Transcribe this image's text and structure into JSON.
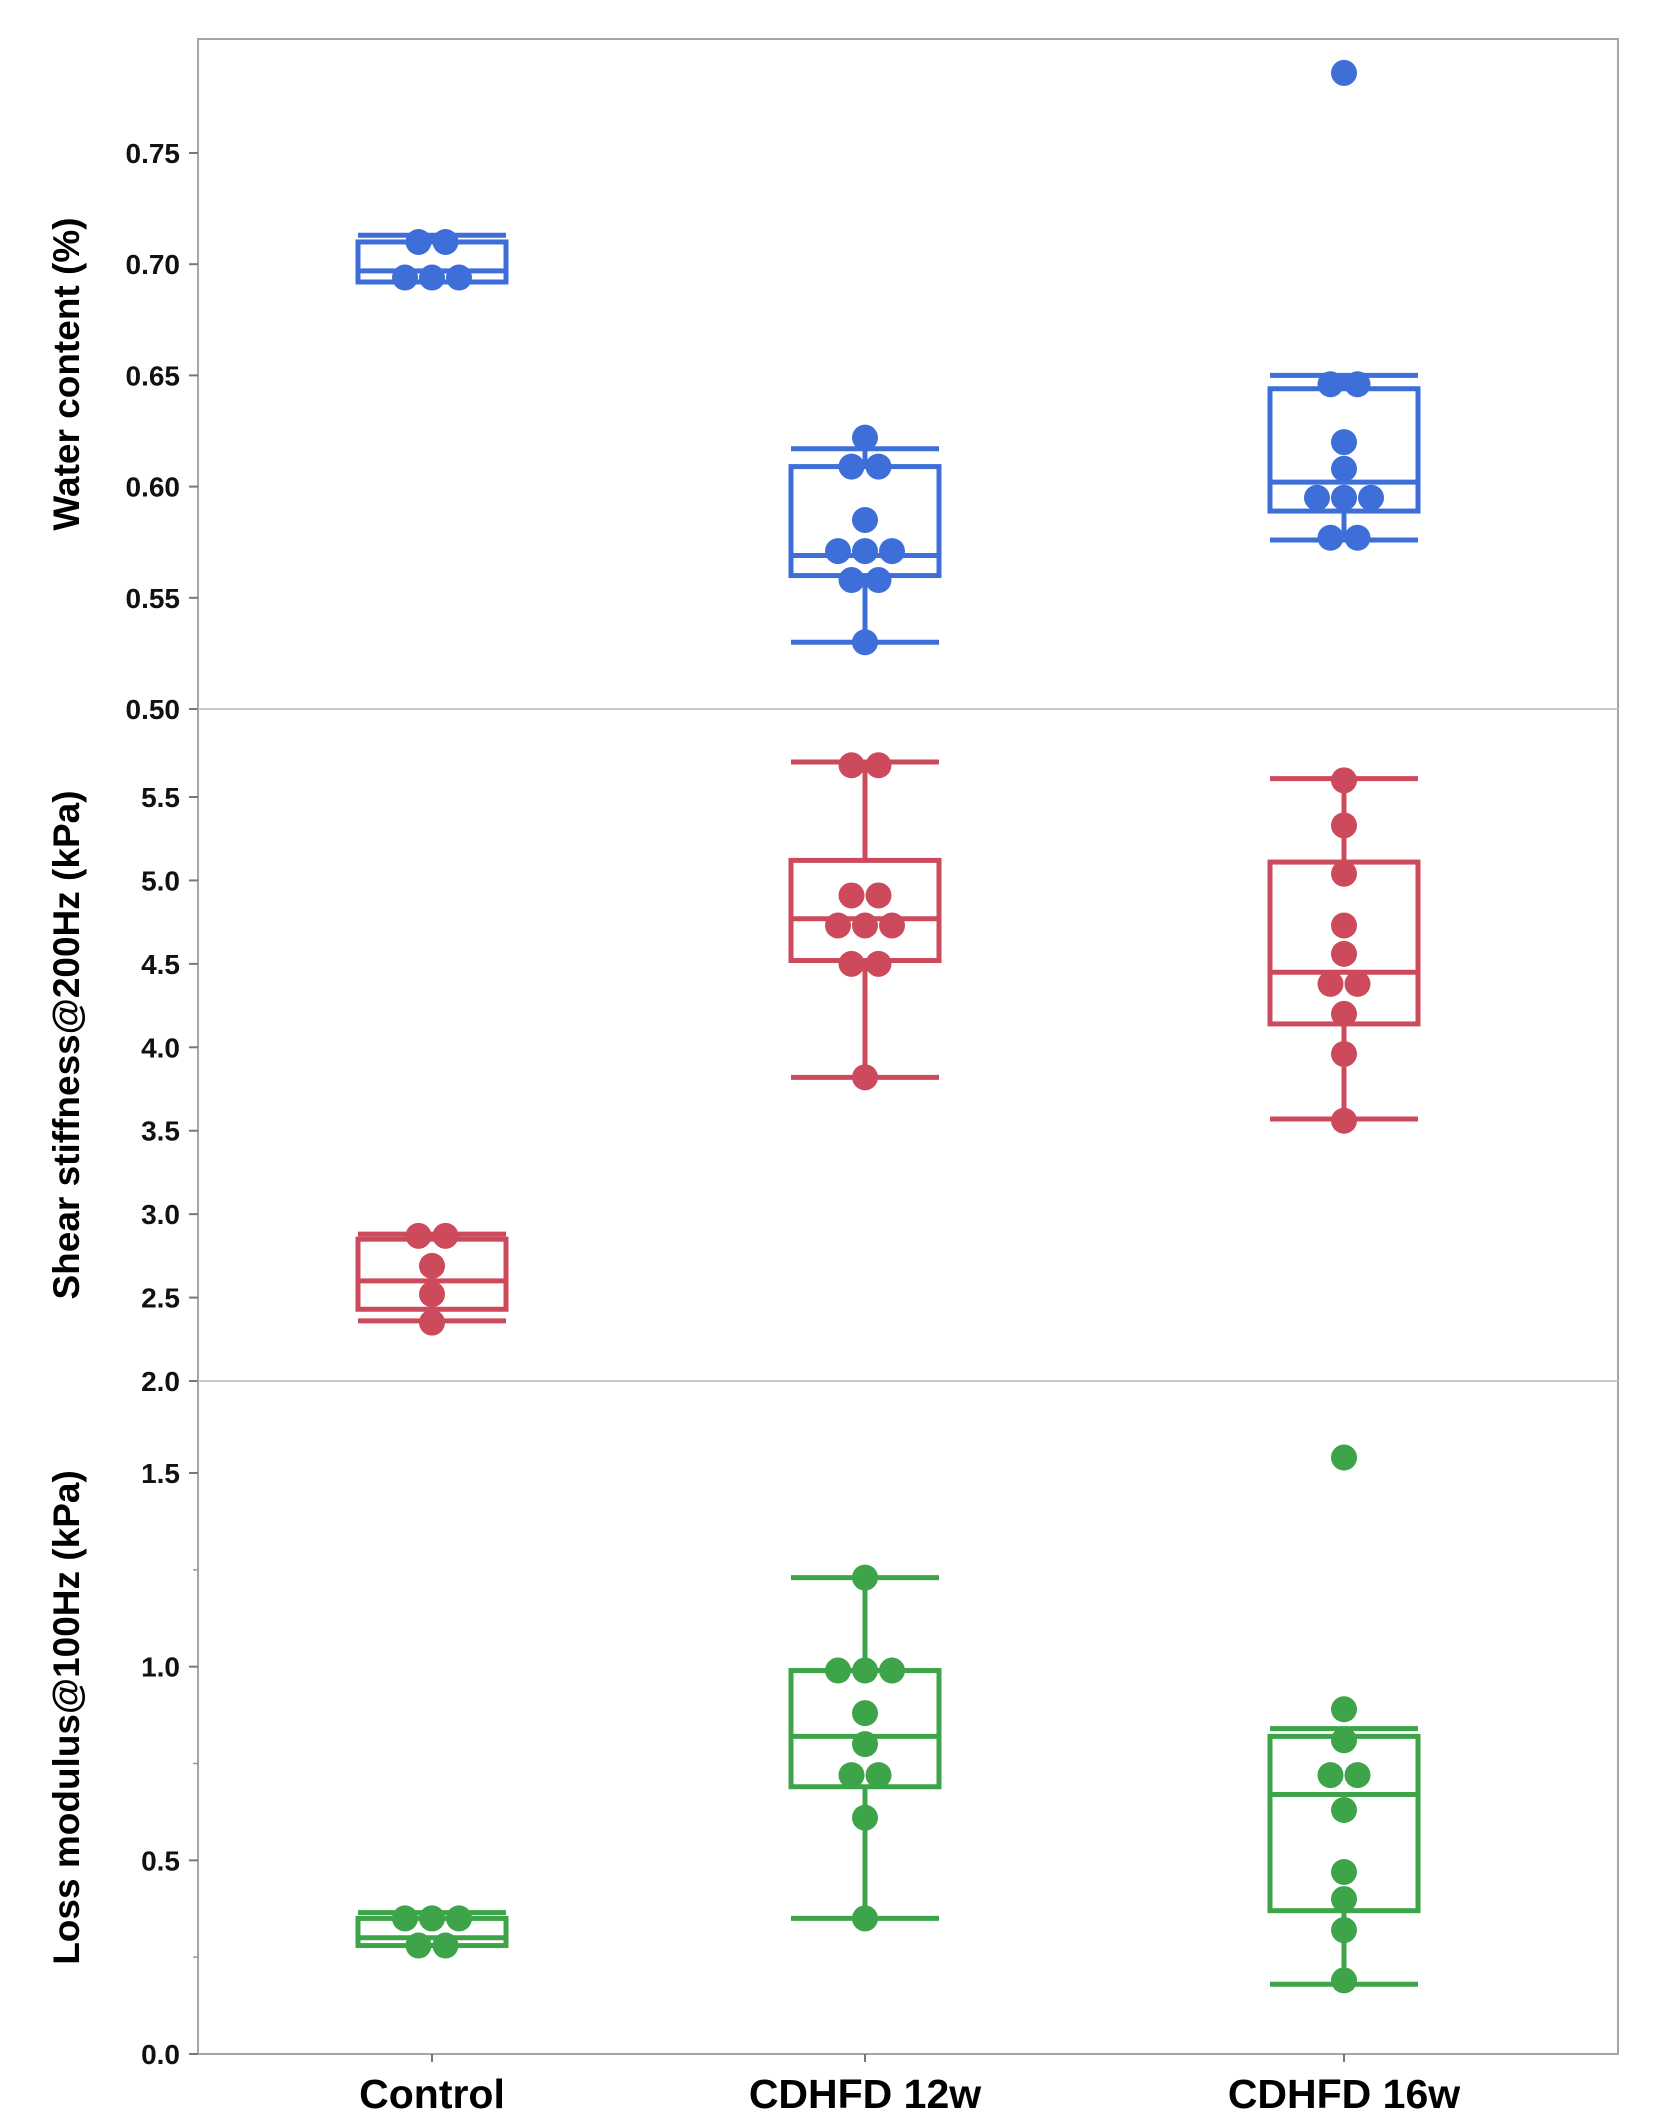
{
  "chart_data": {
    "type": "box",
    "layout": "three vertically stacked panels sharing the x-axis",
    "categories": [
      "Control",
      "CDHFD 12w",
      "CDHFD 16w"
    ],
    "panels": [
      {
        "ylabel": "Water content (%)",
        "ylim": [
          0.5,
          0.8
        ],
        "yticks": [
          0.5,
          0.55,
          0.6,
          0.65,
          0.7,
          0.75
        ],
        "ytick_labels": [
          "0.50",
          "0.55",
          "0.60",
          "0.65",
          "0.70",
          "0.75"
        ],
        "color": "#3E6FD8",
        "groups": [
          {
            "category": "Control",
            "whisker_low": 0.692,
            "q1": 0.692,
            "median": 0.697,
            "q3": 0.71,
            "whisker_high": 0.713,
            "points": [
              0.71,
              0.71,
              0.694,
              0.694,
              0.694
            ]
          },
          {
            "category": "CDHFD 12w",
            "whisker_low": 0.53,
            "q1": 0.56,
            "median": 0.569,
            "q3": 0.609,
            "whisker_high": 0.617,
            "points": [
              0.622,
              0.609,
              0.609,
              0.585,
              0.571,
              0.571,
              0.571,
              0.558,
              0.558,
              0.53
            ]
          },
          {
            "category": "CDHFD 16w",
            "whisker_low": 0.576,
            "q1": 0.589,
            "median": 0.602,
            "q3": 0.644,
            "whisker_high": 0.65,
            "points": [
              0.786,
              0.646,
              0.646,
              0.62,
              0.608,
              0.595,
              0.595,
              0.595,
              0.577,
              0.577
            ]
          }
        ]
      },
      {
        "ylabel": "Shear stiffness@200Hz (kPa)",
        "ylim": [
          2.0,
          6.0
        ],
        "yticks": [
          2.0,
          2.5,
          3.0,
          3.5,
          4.0,
          4.5,
          5.0,
          5.5
        ],
        "ytick_labels": [
          "2.0",
          "2.5",
          "3.0",
          "3.5",
          "4.0",
          "4.5",
          "5.0",
          "5.5"
        ],
        "color": "#CC4A5B",
        "groups": [
          {
            "category": "Control",
            "whisker_low": 2.36,
            "q1": 2.43,
            "median": 2.6,
            "q3": 2.85,
            "whisker_high": 2.88,
            "points": [
              2.87,
              2.87,
              2.69,
              2.52,
              2.35
            ]
          },
          {
            "category": "CDHFD 12w",
            "whisker_low": 3.82,
            "q1": 4.52,
            "median": 4.77,
            "q3": 5.12,
            "whisker_high": 5.71,
            "points": [
              5.69,
              5.69,
              4.91,
              4.91,
              4.73,
              4.73,
              4.73,
              4.5,
              4.5,
              3.82
            ]
          },
          {
            "category": "CDHFD 16w",
            "whisker_low": 3.57,
            "q1": 4.14,
            "median": 4.45,
            "q3": 5.11,
            "whisker_high": 5.61,
            "points": [
              5.6,
              5.33,
              5.04,
              4.73,
              4.56,
              4.38,
              4.38,
              4.2,
              3.96,
              3.56
            ]
          }
        ]
      },
      {
        "ylabel": "Loss modulus@100Hz (kPa)",
        "ylim": [
          0.0,
          1.75
        ],
        "yticks": [
          0.0,
          0.5,
          1.0,
          1.5
        ],
        "ytick_labels": [
          "0.0",
          "0.5",
          "1.0",
          "1.5"
        ],
        "minor_yticks": [
          0.25,
          0.75,
          1.25
        ],
        "color": "#3DA44A",
        "groups": [
          {
            "category": "Control",
            "whisker_low": 0.28,
            "q1": 0.28,
            "median": 0.3,
            "q3": 0.35,
            "whisker_high": 0.365,
            "points": [
              0.35,
              0.35,
              0.35,
              0.28,
              0.28
            ]
          },
          {
            "category": "CDHFD 12w",
            "whisker_low": 0.35,
            "q1": 0.69,
            "median": 0.82,
            "q3": 0.99,
            "whisker_high": 1.23,
            "points": [
              1.23,
              0.99,
              0.99,
              0.99,
              0.88,
              0.8,
              0.72,
              0.72,
              0.61,
              0.35
            ]
          },
          {
            "category": "CDHFD 16w",
            "whisker_low": 0.18,
            "q1": 0.37,
            "median": 0.67,
            "q3": 0.82,
            "whisker_high": 0.84,
            "points": [
              1.54,
              0.89,
              0.81,
              0.72,
              0.72,
              0.63,
              0.47,
              0.4,
              0.32,
              0.19
            ]
          }
        ]
      }
    ]
  }
}
